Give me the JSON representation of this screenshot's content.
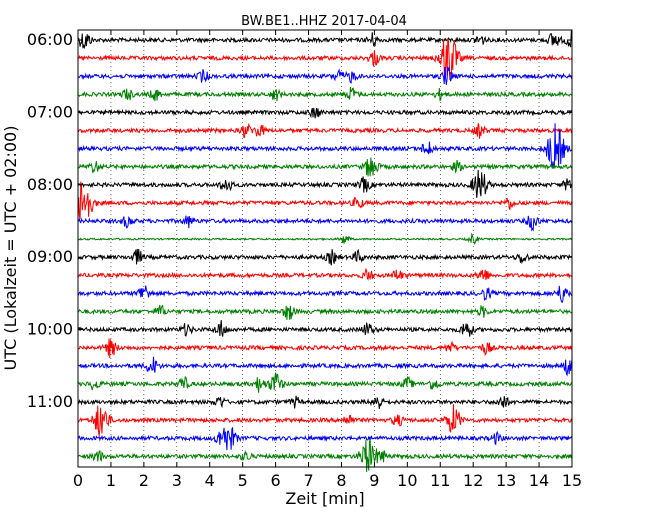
{
  "chart_data": {
    "type": "line",
    "title": "BW.BE1..HHZ 2017-04-04",
    "xlabel": "Zeit  [min]",
    "ylabel": "UTC (Lokalzeit = UTC + 02:00)",
    "xlim": [
      0,
      15
    ],
    "x_ticks": [
      "0",
      "1",
      "2",
      "3",
      "4",
      "5",
      "6",
      "7",
      "8",
      "9",
      "10",
      "11",
      "12",
      "13",
      "14",
      "15"
    ],
    "y_tick_labels": [
      "06:00",
      "07:00",
      "08:00",
      "09:00",
      "10:00",
      "11:00"
    ],
    "start_time": "06:00",
    "minutes_per_trace": 15,
    "trace_count": 24,
    "grid": "vertical dotted at each minute",
    "color_cycle": [
      "#000000",
      "#ff0000",
      "#0000ff",
      "#008000"
    ],
    "events": [
      {
        "trace": 0,
        "minute": 0.2,
        "amp": 0.6
      },
      {
        "trace": 0,
        "minute": 8.95,
        "amp": 0.4
      },
      {
        "trace": 0,
        "minute": 12.2,
        "amp": 0.35
      },
      {
        "trace": 0,
        "minute": 14.45,
        "amp": 0.5
      },
      {
        "trace": 0,
        "minute": 14.95,
        "amp": 0.45
      },
      {
        "trace": 1,
        "minute": 9.0,
        "amp": 0.45
      },
      {
        "trace": 1,
        "minute": 11.25,
        "amp": 1.6
      },
      {
        "trace": 2,
        "minute": 3.8,
        "amp": 0.35
      },
      {
        "trace": 2,
        "minute": 7.9,
        "amp": 0.35
      },
      {
        "trace": 2,
        "minute": 8.3,
        "amp": 0.35
      },
      {
        "trace": 2,
        "minute": 11.2,
        "amp": 0.55
      },
      {
        "trace": 3,
        "minute": 1.5,
        "amp": 0.35
      },
      {
        "trace": 3,
        "minute": 2.35,
        "amp": 0.35
      },
      {
        "trace": 3,
        "minute": 6.0,
        "amp": 0.35
      },
      {
        "trace": 3,
        "minute": 8.3,
        "amp": 0.4
      },
      {
        "trace": 3,
        "minute": 11.0,
        "amp": 0.3
      },
      {
        "trace": 4,
        "minute": 7.2,
        "amp": 0.35
      },
      {
        "trace": 5,
        "minute": 5.1,
        "amp": 0.4
      },
      {
        "trace": 5,
        "minute": 5.5,
        "amp": 0.4
      },
      {
        "trace": 5,
        "minute": 12.2,
        "amp": 0.4
      },
      {
        "trace": 6,
        "minute": 10.6,
        "amp": 0.45
      },
      {
        "trace": 6,
        "minute": 14.5,
        "amp": 1.5
      },
      {
        "trace": 7,
        "minute": 0.5,
        "amp": 0.35
      },
      {
        "trace": 7,
        "minute": 8.9,
        "amp": 0.75
      },
      {
        "trace": 7,
        "minute": 11.5,
        "amp": 0.3
      },
      {
        "trace": 8,
        "minute": 4.5,
        "amp": 0.45
      },
      {
        "trace": 8,
        "minute": 8.7,
        "amp": 0.45
      },
      {
        "trace": 8,
        "minute": 12.2,
        "amp": 1.0
      },
      {
        "trace": 8,
        "minute": 14.9,
        "amp": 0.4
      },
      {
        "trace": 9,
        "minute": 0.15,
        "amp": 1.6
      },
      {
        "trace": 9,
        "minute": 8.5,
        "amp": 0.35
      },
      {
        "trace": 9,
        "minute": 13.1,
        "amp": 0.35
      },
      {
        "trace": 10,
        "minute": 1.5,
        "amp": 0.35
      },
      {
        "trace": 10,
        "minute": 3.35,
        "amp": 0.35
      },
      {
        "trace": 10,
        "minute": 13.8,
        "amp": 0.5
      },
      {
        "trace": 11,
        "minute": 8.1,
        "amp": 0.3
      },
      {
        "trace": 11,
        "minute": 12.0,
        "amp": 0.3
      },
      {
        "trace": 12,
        "minute": 1.8,
        "amp": 0.45
      },
      {
        "trace": 12,
        "minute": 7.7,
        "amp": 0.4
      },
      {
        "trace": 12,
        "minute": 8.5,
        "amp": 0.35
      },
      {
        "trace": 12,
        "minute": 13.5,
        "amp": 0.35
      },
      {
        "trace": 13,
        "minute": 8.8,
        "amp": 0.35
      },
      {
        "trace": 13,
        "minute": 9.7,
        "amp": 0.35
      },
      {
        "trace": 13,
        "minute": 12.3,
        "amp": 0.45
      },
      {
        "trace": 14,
        "minute": 2.0,
        "amp": 0.55
      },
      {
        "trace": 14,
        "minute": 12.4,
        "amp": 0.35
      },
      {
        "trace": 14,
        "minute": 14.7,
        "amp": 0.55
      },
      {
        "trace": 15,
        "minute": 2.5,
        "amp": 0.35
      },
      {
        "trace": 15,
        "minute": 6.4,
        "amp": 0.5
      },
      {
        "trace": 15,
        "minute": 12.3,
        "amp": 0.3
      },
      {
        "trace": 16,
        "minute": 3.3,
        "amp": 0.35
      },
      {
        "trace": 16,
        "minute": 4.35,
        "amp": 0.5
      },
      {
        "trace": 16,
        "minute": 8.8,
        "amp": 0.4
      },
      {
        "trace": 16,
        "minute": 11.8,
        "amp": 0.55
      },
      {
        "trace": 17,
        "minute": 1.0,
        "amp": 0.55
      },
      {
        "trace": 17,
        "minute": 11.3,
        "amp": 0.3
      },
      {
        "trace": 17,
        "minute": 12.4,
        "amp": 0.35
      },
      {
        "trace": 18,
        "minute": 2.25,
        "amp": 0.55
      },
      {
        "trace": 18,
        "minute": 14.9,
        "amp": 0.55
      },
      {
        "trace": 19,
        "minute": 0.5,
        "amp": 0.35
      },
      {
        "trace": 19,
        "minute": 3.2,
        "amp": 0.4
      },
      {
        "trace": 19,
        "minute": 5.5,
        "amp": 0.45
      },
      {
        "trace": 19,
        "minute": 6.0,
        "amp": 0.7
      },
      {
        "trace": 19,
        "minute": 10.0,
        "amp": 0.35
      },
      {
        "trace": 19,
        "minute": 10.8,
        "amp": 0.35
      },
      {
        "trace": 20,
        "minute": 4.3,
        "amp": 0.35
      },
      {
        "trace": 20,
        "minute": 6.6,
        "amp": 0.3
      },
      {
        "trace": 20,
        "minute": 9.1,
        "amp": 0.45
      },
      {
        "trace": 20,
        "minute": 12.9,
        "amp": 0.4
      },
      {
        "trace": 21,
        "minute": 0.7,
        "amp": 1.1
      },
      {
        "trace": 21,
        "minute": 8.2,
        "amp": 0.35
      },
      {
        "trace": 21,
        "minute": 9.7,
        "amp": 0.35
      },
      {
        "trace": 21,
        "minute": 11.4,
        "amp": 0.9
      },
      {
        "trace": 22,
        "minute": 4.4,
        "amp": 0.75
      },
      {
        "trace": 22,
        "minute": 4.65,
        "amp": 0.55
      },
      {
        "trace": 22,
        "minute": 12.7,
        "amp": 0.3
      },
      {
        "trace": 23,
        "minute": 0.6,
        "amp": 0.35
      },
      {
        "trace": 23,
        "minute": 5.1,
        "amp": 0.3
      },
      {
        "trace": 23,
        "minute": 8.8,
        "amp": 1.1
      },
      {
        "trace": 23,
        "minute": 9.2,
        "amp": 0.4
      }
    ]
  }
}
